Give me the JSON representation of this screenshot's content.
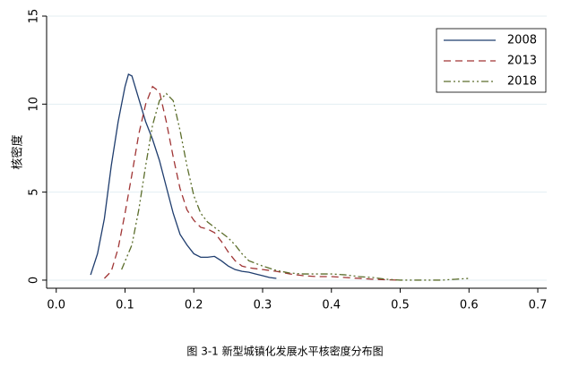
{
  "chart_data": {
    "type": "line",
    "caption": "图 3-1 新型城镇化发展水平核密度分布图",
    "y_label": "核密度",
    "xlim": [
      -0.014,
      0.713
    ],
    "ylim": [
      -0.46,
      15
    ],
    "xticks": [
      {
        "value": 0,
        "label": "0.0"
      },
      0.1,
      0.2,
      0.3,
      0.4,
      0.5,
      0.6,
      0.7
    ],
    "yticks": [
      0,
      5,
      10,
      15
    ],
    "grid": true,
    "legend": "top-right",
    "series": [
      {
        "name": "2008",
        "color": "#1f3d6e",
        "dash": "none",
        "x": [
          0.05,
          0.06,
          0.07,
          0.08,
          0.09,
          0.1,
          0.105,
          0.11,
          0.12,
          0.13,
          0.14,
          0.15,
          0.16,
          0.17,
          0.18,
          0.19,
          0.2,
          0.21,
          0.22,
          0.23,
          0.24,
          0.25,
          0.26,
          0.27,
          0.28,
          0.29,
          0.3,
          0.31,
          0.32
        ],
        "values": [
          0.3,
          1.5,
          3.5,
          6.5,
          9.0,
          11.0,
          11.7,
          11.6,
          10.3,
          9.0,
          8.0,
          6.8,
          5.3,
          3.8,
          2.6,
          2.0,
          1.5,
          1.3,
          1.3,
          1.35,
          1.1,
          0.8,
          0.6,
          0.5,
          0.45,
          0.35,
          0.25,
          0.15,
          0.1
        ]
      },
      {
        "name": "2013",
        "color": "#a03535",
        "dash": "8,5",
        "x": [
          0.07,
          0.08,
          0.09,
          0.1,
          0.11,
          0.12,
          0.13,
          0.14,
          0.15,
          0.16,
          0.17,
          0.18,
          0.19,
          0.2,
          0.21,
          0.22,
          0.23,
          0.24,
          0.25,
          0.26,
          0.27,
          0.28,
          0.3,
          0.32,
          0.34,
          0.36,
          0.38,
          0.4,
          0.42,
          0.44,
          0.46,
          0.48,
          0.5
        ],
        "values": [
          0.1,
          0.5,
          1.8,
          3.8,
          6.0,
          8.3,
          10.0,
          11.0,
          10.7,
          9.0,
          7.0,
          5.2,
          4.0,
          3.4,
          3.0,
          2.9,
          2.7,
          2.2,
          1.6,
          1.1,
          0.8,
          0.7,
          0.6,
          0.5,
          0.35,
          0.25,
          0.2,
          0.2,
          0.15,
          0.1,
          0.05,
          0.02,
          0.0
        ]
      },
      {
        "name": "2018",
        "color": "#5c6e2c",
        "dash": "8,3,2,3,2,3",
        "x": [
          0.095,
          0.11,
          0.12,
          0.13,
          0.14,
          0.15,
          0.16,
          0.17,
          0.18,
          0.19,
          0.2,
          0.21,
          0.22,
          0.23,
          0.24,
          0.25,
          0.26,
          0.27,
          0.28,
          0.3,
          0.32,
          0.34,
          0.36,
          0.38,
          0.4,
          0.42,
          0.44,
          0.46,
          0.48,
          0.5,
          0.52,
          0.54,
          0.56,
          0.58,
          0.6
        ],
        "values": [
          0.6,
          2.0,
          4.0,
          6.5,
          8.8,
          10.2,
          10.6,
          10.2,
          8.5,
          6.5,
          4.8,
          3.8,
          3.3,
          3.0,
          2.7,
          2.4,
          2.0,
          1.5,
          1.1,
          0.8,
          0.55,
          0.4,
          0.35,
          0.35,
          0.35,
          0.3,
          0.2,
          0.15,
          0.05,
          0.0,
          0.0,
          0.0,
          0.0,
          0.05,
          0.1
        ]
      }
    ]
  }
}
